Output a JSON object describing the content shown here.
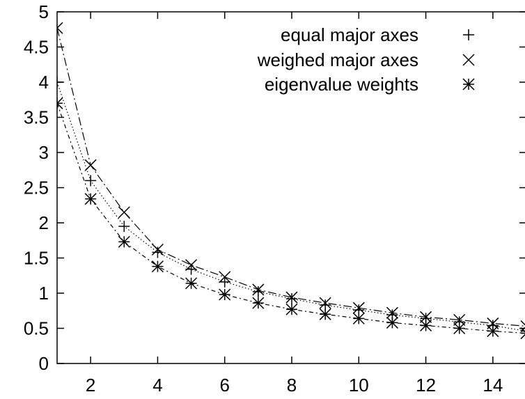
{
  "chart_data": {
    "type": "line",
    "xlim": [
      1,
      15
    ],
    "ylim": [
      0,
      5
    ],
    "x_ticks": [
      2,
      4,
      6,
      8,
      10,
      12,
      14
    ],
    "y_ticks": [
      "0",
      "0.5",
      "1",
      "1.5",
      "2",
      "2.5",
      "3",
      "3.5",
      "4",
      "4.5",
      "5"
    ],
    "grid": false,
    "legend_position": "top-right",
    "x": [
      1,
      2,
      3,
      4,
      5,
      6,
      7,
      8,
      9,
      10,
      11,
      12,
      13,
      14,
      15
    ],
    "series": [
      {
        "name": "equal major axes",
        "marker": "plus",
        "line_style": "dotted",
        "values": [
          4.0,
          2.6,
          1.95,
          1.58,
          1.34,
          1.16,
          1.02,
          0.92,
          0.83,
          0.76,
          0.69,
          0.64,
          0.59,
          0.54,
          0.46
        ]
      },
      {
        "name": "weighed major axes",
        "marker": "cross",
        "line_style": "long-dash-dot",
        "values": [
          4.77,
          2.82,
          2.15,
          1.62,
          1.4,
          1.23,
          1.05,
          0.94,
          0.86,
          0.79,
          0.72,
          0.66,
          0.62,
          0.57,
          0.53
        ]
      },
      {
        "name": "eigenvalue weights",
        "marker": "asterisk",
        "line_style": "dash-dot",
        "values": [
          3.7,
          2.34,
          1.73,
          1.38,
          1.14,
          0.98,
          0.86,
          0.77,
          0.7,
          0.64,
          0.58,
          0.54,
          0.5,
          0.46,
          0.43
        ]
      }
    ]
  }
}
